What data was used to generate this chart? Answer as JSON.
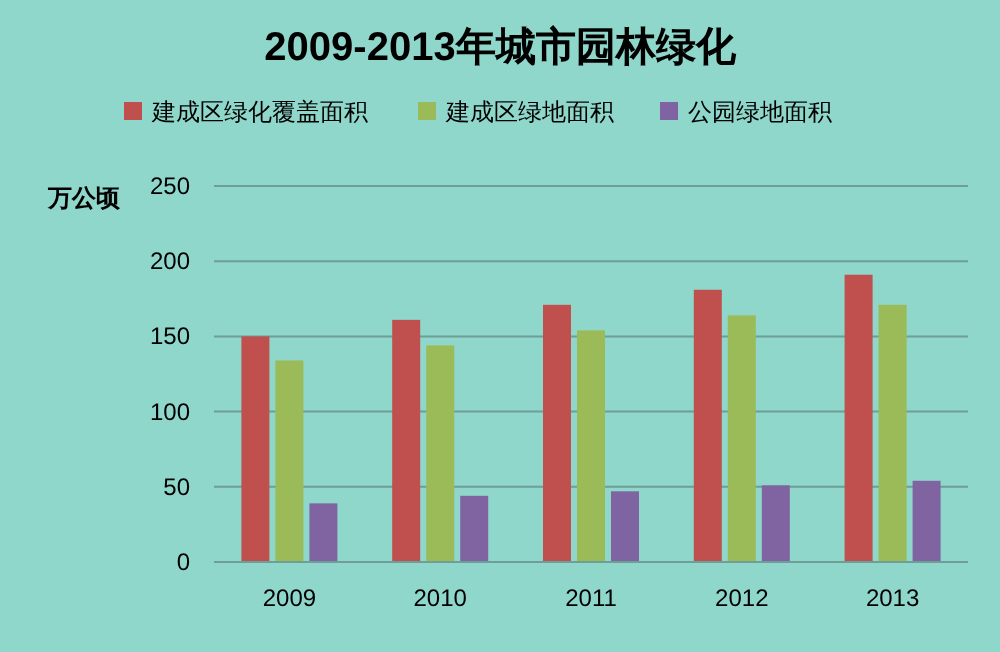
{
  "chart_data": {
    "type": "bar",
    "title": "2009-2013年城市园林绿化",
    "ylabel": "万公顷",
    "categories": [
      "2009",
      "2010",
      "2011",
      "2012",
      "2013"
    ],
    "series": [
      {
        "name": "建成区绿化覆盖面积",
        "color": "#c0504d",
        "values": [
          150,
          161,
          171,
          181,
          191
        ]
      },
      {
        "name": "建成区绿地面积",
        "color": "#9bbb59",
        "values": [
          134,
          144,
          154,
          164,
          171
        ]
      },
      {
        "name": "公园绿地面积",
        "color": "#8064a2",
        "values": [
          39,
          44,
          47,
          51,
          54
        ]
      }
    ],
    "ylim": [
      0,
      250
    ],
    "yticks": [
      0,
      50,
      100,
      150,
      200,
      250
    ],
    "grid": "y",
    "legend": "top"
  }
}
